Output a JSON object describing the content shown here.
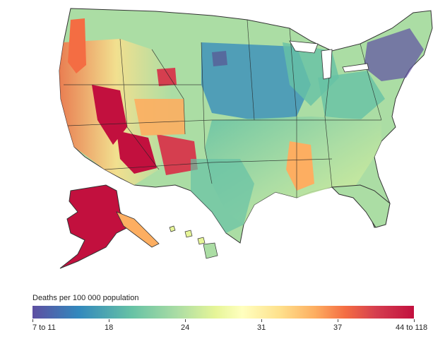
{
  "legend": {
    "title": "Deaths per 100 000 population",
    "ticks": [
      "7 to 11",
      "18",
      "24",
      "31",
      "37",
      "44 to 118"
    ],
    "colors": [
      "#5e4fa2",
      "#3288bd",
      "#66c2a5",
      "#abdda4",
      "#e6f598",
      "#ffffbf",
      "#fee08b",
      "#fdae61",
      "#f46d43",
      "#d53e4f",
      "#c2103e"
    ]
  }
}
